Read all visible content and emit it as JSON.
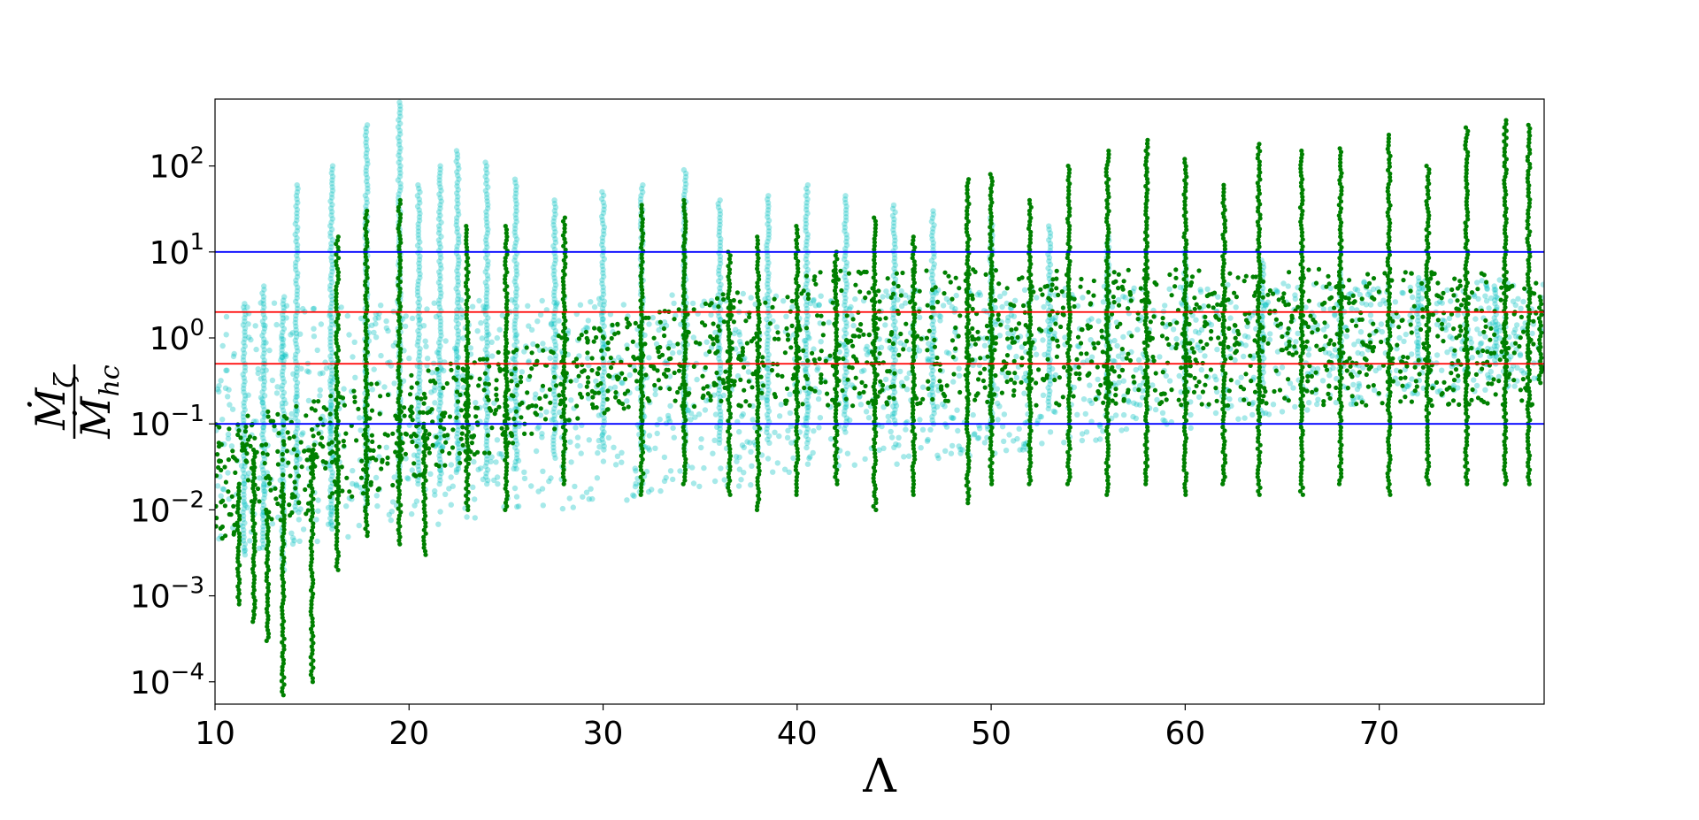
{
  "chart_data": {
    "type": "scatter",
    "title": "",
    "xlabel": "Λ",
    "ylabel": {
      "numerator": "Ṁ",
      "numerator_subscript": "ζ",
      "denominator": "Ṁ",
      "denominator_subscript": "hc"
    },
    "xlim": [
      10,
      78.5
    ],
    "ylim": [
      5.5e-05,
      600
    ],
    "yscale": "log",
    "grid": false,
    "legend": "none",
    "x_ticks": [
      {
        "value": 10,
        "label": "10"
      },
      {
        "value": 20,
        "label": "20"
      },
      {
        "value": 30,
        "label": "30"
      },
      {
        "value": 40,
        "label": "40"
      },
      {
        "value": 50,
        "label": "50"
      },
      {
        "value": 60,
        "label": "60"
      },
      {
        "value": 70,
        "label": "70"
      }
    ],
    "y_ticks": [
      {
        "value": 0.0001,
        "base": "10",
        "exp": "−4"
      },
      {
        "value": 0.001,
        "base": "10",
        "exp": "−3"
      },
      {
        "value": 0.01,
        "base": "10",
        "exp": "−2"
      },
      {
        "value": 0.1,
        "base": "10",
        "exp": "−1"
      },
      {
        "value": 1,
        "base": "10",
        "exp": "0"
      },
      {
        "value": 10,
        "base": "10",
        "exp": "1"
      },
      {
        "value": 100,
        "base": "10",
        "exp": "2"
      }
    ],
    "reference_lines": [
      {
        "y": 10,
        "color": "#0000ff"
      },
      {
        "y": 2,
        "color": "#ff0000"
      },
      {
        "y": 0.5,
        "color": "#ff0000"
      },
      {
        "y": 0.1,
        "color": "#0000ff"
      }
    ],
    "series": [
      {
        "color": "#00bfbf",
        "alpha": 0.35,
        "marker": "circle",
        "columns": [
          {
            "x": 11.5,
            "low": 0.003,
            "high": 2.5
          },
          {
            "x": 12.5,
            "low": 0.004,
            "high": 4
          },
          {
            "x": 13.5,
            "low": 0.002,
            "high": 3
          },
          {
            "x": 14.2,
            "low": 0.01,
            "high": 60
          },
          {
            "x": 16.0,
            "low": 0.006,
            "high": 100
          },
          {
            "x": 17.8,
            "low": 0.01,
            "high": 300
          },
          {
            "x": 19.5,
            "low": 0.02,
            "high": 550
          },
          {
            "x": 20.5,
            "low": 0.02,
            "high": 60
          },
          {
            "x": 21.6,
            "low": 0.02,
            "high": 100
          },
          {
            "x": 22.5,
            "low": 0.03,
            "high": 150
          },
          {
            "x": 24.0,
            "low": 0.02,
            "high": 110
          },
          {
            "x": 25.5,
            "low": 0.03,
            "high": 70
          },
          {
            "x": 27.5,
            "low": 0.04,
            "high": 40
          },
          {
            "x": 30.0,
            "low": 0.05,
            "high": 50
          },
          {
            "x": 32.0,
            "low": 0.05,
            "high": 60
          },
          {
            "x": 34.2,
            "low": 0.05,
            "high": 90
          },
          {
            "x": 36.0,
            "low": 0.06,
            "high": 40
          },
          {
            "x": 38.5,
            "low": 0.06,
            "high": 45
          },
          {
            "x": 40.5,
            "low": 0.06,
            "high": 60
          },
          {
            "x": 42.5,
            "low": 0.08,
            "high": 45
          },
          {
            "x": 45.0,
            "low": 0.1,
            "high": 35
          },
          {
            "x": 47.0,
            "low": 0.1,
            "high": 30
          },
          {
            "x": 50.0,
            "low": 0.1,
            "high": 25
          },
          {
            "x": 53.0,
            "low": 0.15,
            "high": 20
          },
          {
            "x": 56.0,
            "low": 0.2,
            "high": 15
          },
          {
            "x": 60.0,
            "low": 0.3,
            "high": 10
          },
          {
            "x": 64.0,
            "low": 0.3,
            "high": 8
          },
          {
            "x": 68.0,
            "low": 0.4,
            "high": 6
          },
          {
            "x": 72.0,
            "low": 0.5,
            "high": 5
          },
          {
            "x": 76.0,
            "low": 0.5,
            "high": 4
          }
        ]
      },
      {
        "color": "#008000",
        "alpha": 1,
        "marker": "circle",
        "columns": [
          {
            "x": 11.2,
            "low": 0.0008,
            "high": 0.02
          },
          {
            "x": 12.0,
            "low": 0.0005,
            "high": 0.05
          },
          {
            "x": 12.7,
            "low": 0.0003,
            "high": 0.01
          },
          {
            "x": 13.5,
            "low": 7e-05,
            "high": 0.02
          },
          {
            "x": 15.0,
            "low": 0.0001,
            "high": 0.05
          },
          {
            "x": 16.3,
            "low": 0.002,
            "high": 15
          },
          {
            "x": 17.8,
            "low": 0.005,
            "high": 30
          },
          {
            "x": 19.5,
            "low": 0.004,
            "high": 40
          },
          {
            "x": 20.8,
            "low": 0.003,
            "high": 0.1
          },
          {
            "x": 23.0,
            "low": 0.01,
            "high": 20
          },
          {
            "x": 25.0,
            "low": 0.01,
            "high": 20
          },
          {
            "x": 28.0,
            "low": 0.02,
            "high": 25
          },
          {
            "x": 32.0,
            "low": 0.015,
            "high": 35
          },
          {
            "x": 34.2,
            "low": 0.02,
            "high": 40
          },
          {
            "x": 36.5,
            "low": 0.015,
            "high": 10
          },
          {
            "x": 38.0,
            "low": 0.01,
            "high": 15
          },
          {
            "x": 40.0,
            "low": 0.015,
            "high": 20
          },
          {
            "x": 42.0,
            "low": 0.02,
            "high": 10
          },
          {
            "x": 44.0,
            "low": 0.01,
            "high": 25
          },
          {
            "x": 46.0,
            "low": 0.015,
            "high": 15
          },
          {
            "x": 48.8,
            "low": 0.012,
            "high": 70
          },
          {
            "x": 50.0,
            "low": 0.02,
            "high": 80
          },
          {
            "x": 52.0,
            "low": 0.02,
            "high": 40
          },
          {
            "x": 54.0,
            "low": 0.02,
            "high": 100
          },
          {
            "x": 56.0,
            "low": 0.015,
            "high": 150
          },
          {
            "x": 58.0,
            "low": 0.02,
            "high": 200
          },
          {
            "x": 60.0,
            "low": 0.015,
            "high": 120
          },
          {
            "x": 62.0,
            "low": 0.02,
            "high": 60
          },
          {
            "x": 63.8,
            "low": 0.015,
            "high": 180
          },
          {
            "x": 66.0,
            "low": 0.015,
            "high": 150
          },
          {
            "x": 68.0,
            "low": 0.02,
            "high": 160
          },
          {
            "x": 70.5,
            "low": 0.015,
            "high": 230
          },
          {
            "x": 72.5,
            "low": 0.02,
            "high": 100
          },
          {
            "x": 74.5,
            "low": 0.02,
            "high": 280
          },
          {
            "x": 76.5,
            "low": 0.02,
            "high": 340
          },
          {
            "x": 77.7,
            "low": 0.02,
            "high": 300
          },
          {
            "x": 78.3,
            "low": 0.3,
            "high": 3
          }
        ]
      }
    ]
  }
}
